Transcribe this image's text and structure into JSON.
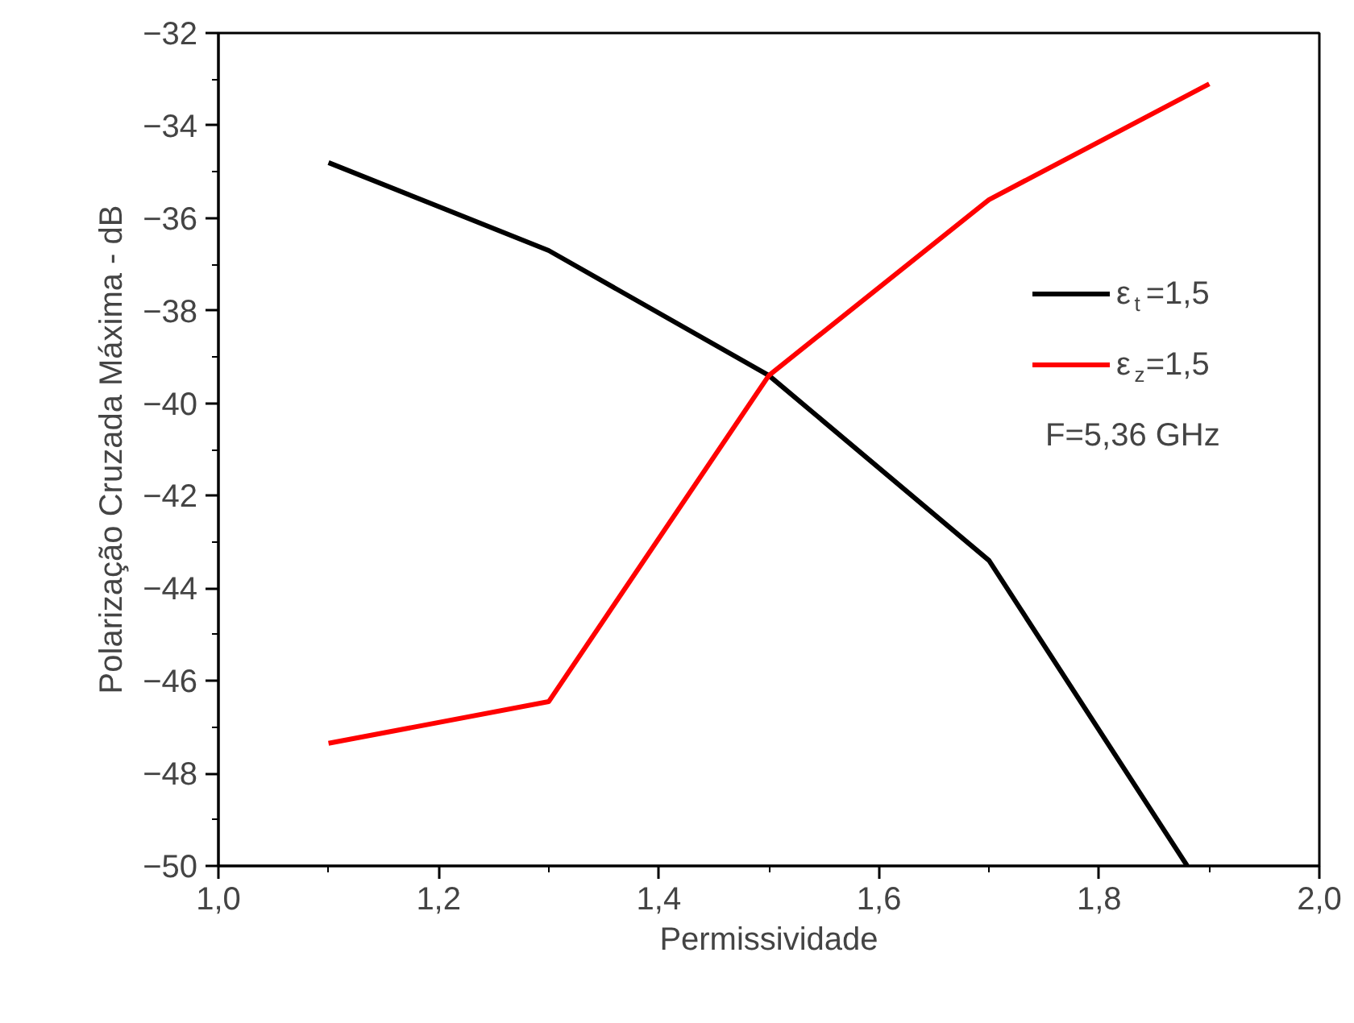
{
  "chart_data": {
    "type": "line",
    "xlabel": "Permissividade",
    "ylabel": "Polarização Cruzada Máxima - dB",
    "series": [
      {
        "name": "ε$_{t}$=1,5",
        "color": "#000000",
        "x": [
          1.1,
          1.3,
          1.5,
          1.7,
          1.88
        ],
        "values": [
          -34.8,
          -36.7,
          -39.4,
          -43.4,
          -50
        ]
      },
      {
        "name": "ε$_{z}$=1,5",
        "color": "#ff0000",
        "x": [
          1.1,
          1.3,
          1.5,
          1.7,
          1.9
        ],
        "values": [
          -47.35,
          -46.45,
          -39.4,
          -35.6,
          -33.1
        ]
      }
    ],
    "annotations": [
      "F=5,36 GHz"
    ],
    "xlim": [
      1.0,
      2.0
    ],
    "xticks": [
      {
        "value": 1.0,
        "label": "1,0"
      },
      {
        "value": 1.2,
        "label": "1,2"
      },
      {
        "value": 1.4,
        "label": "1,4"
      },
      {
        "value": 1.6,
        "label": "1,6"
      },
      {
        "value": 1.8,
        "label": "1,8"
      },
      {
        "value": 2.0,
        "label": "2,0"
      }
    ],
    "ylim": [
      -50,
      -32
    ],
    "yticks": [
      -50,
      -48,
      -46,
      -44,
      -42,
      -40,
      -38,
      -36,
      -34,
      -32
    ],
    "legend": "right",
    "grid": false,
    "marker": "none",
    "line_style": "solid"
  }
}
